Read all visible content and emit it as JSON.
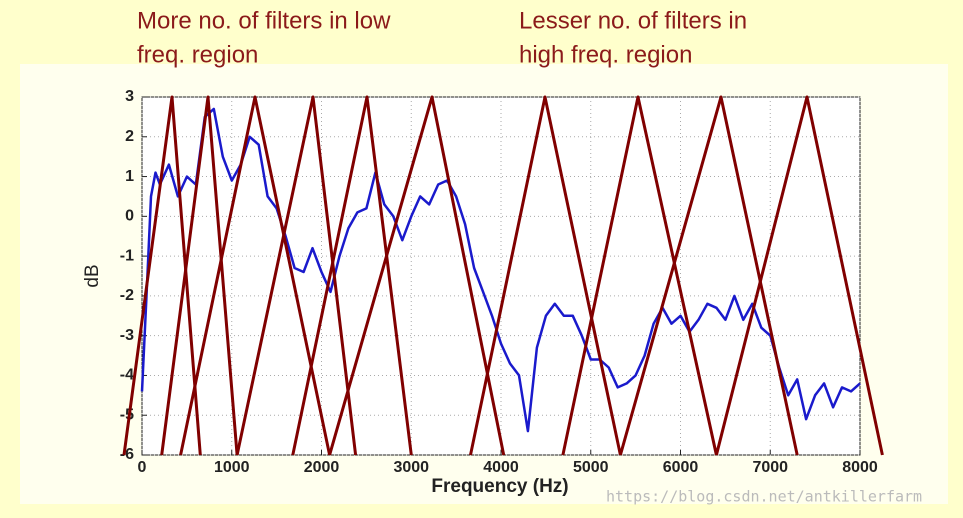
{
  "chart_data": {
    "type": "line",
    "annotations": [
      [
        "More no. of filters in low",
        "freq. region"
      ],
      [
        "Lesser no. of  filters in",
        "high  freq. region"
      ]
    ],
    "xlabel": "Frequency (Hz)",
    "ylabel": "dB",
    "watermark": "https://blog.csdn.net/antkillerfarm",
    "xlim": [
      0,
      8000
    ],
    "ylim": [
      -6,
      3
    ],
    "xticks": [
      0,
      1000,
      2000,
      3000,
      4000,
      5000,
      6000,
      7000,
      8000
    ],
    "yticks": [
      -6,
      -5,
      -4,
      -3,
      -2,
      -1,
      0,
      1,
      2,
      3
    ],
    "grid": true,
    "series": [
      {
        "color": "#1a1acc",
        "x": [
          0,
          50,
          100,
          150,
          200,
          300,
          400,
          500,
          600,
          700,
          800,
          900,
          1000,
          1100,
          1200,
          1300,
          1400,
          1500,
          1600,
          1700,
          1800,
          1900,
          2000,
          2100,
          2200,
          2300,
          2400,
          2500,
          2600,
          2700,
          2800,
          2900,
          3000,
          3100,
          3200,
          3300,
          3400,
          3500,
          3600,
          3700,
          3800,
          3900,
          4000,
          4100,
          4200,
          4300,
          4400,
          4500,
          4600,
          4700,
          4800,
          4900,
          5000,
          5100,
          5200,
          5300,
          5400,
          5500,
          5600,
          5700,
          5800,
          5900,
          6000,
          6100,
          6200,
          6300,
          6400,
          6500,
          6600,
          6700,
          6800,
          6900,
          7000,
          7100,
          7200,
          7300,
          7400,
          7500,
          7600,
          7700,
          7800,
          7900,
          8000
        ],
        "values": [
          -4.4,
          -2,
          0.5,
          1.1,
          0.8,
          1.3,
          0.5,
          1.0,
          0.8,
          2.5,
          2.7,
          1.5,
          0.9,
          1.3,
          2.0,
          1.8,
          0.5,
          0.2,
          -0.5,
          -1.3,
          -1.4,
          -0.8,
          -1.4,
          -1.9,
          -1.0,
          -0.3,
          0.1,
          0.2,
          1.1,
          0.3,
          0.0,
          -0.6,
          0.0,
          0.5,
          0.3,
          0.8,
          0.9,
          0.5,
          -0.2,
          -1.3,
          -1.9,
          -2.5,
          -3.2,
          -3.7,
          -4.0,
          -5.4,
          -3.3,
          -2.5,
          -2.2,
          -2.5,
          -2.5,
          -3.0,
          -3.6,
          -3.6,
          -3.8,
          -4.3,
          -4.2,
          -4.0,
          -3.5,
          -2.7,
          -2.3,
          -2.7,
          -2.5,
          -2.9,
          -2.6,
          -2.2,
          -2.3,
          -2.6,
          -2.0,
          -2.6,
          -2.2,
          -2.8,
          -3.0,
          -3.8,
          -4.5,
          -4.1,
          -5.1,
          -4.5,
          -4.2,
          -4.8,
          -4.3,
          -4.4,
          -4.2
        ]
      },
      {
        "color": "#800000",
        "x": [
          -200,
          334,
          650
        ],
        "values": [
          -6,
          3,
          -6
        ]
      },
      {
        "color": "#800000",
        "x": [
          220,
          735,
          1060
        ],
        "values": [
          -6,
          3,
          -6
        ]
      },
      {
        "color": "#800000",
        "x": [
          430,
          1259,
          2090
        ],
        "values": [
          -6,
          3,
          -6
        ]
      },
      {
        "color": "#800000",
        "x": [
          1060,
          1905,
          2380
        ],
        "values": [
          -6,
          3,
          -6
        ]
      },
      {
        "color": "#800000",
        "x": [
          1680,
          2507,
          3000
        ],
        "values": [
          -6,
          3,
          -6
        ]
      },
      {
        "color": "#800000",
        "x": [
          2090,
          3231,
          4030
        ],
        "values": [
          -6,
          3,
          -6
        ]
      },
      {
        "color": "#800000",
        "x": [
          3660,
          4490,
          5330
        ],
        "values": [
          -6,
          3,
          -6
        ]
      },
      {
        "color": "#800000",
        "x": [
          4690,
          5526,
          6400
        ],
        "values": [
          -6,
          3,
          -6
        ]
      },
      {
        "color": "#800000",
        "x": [
          5330,
          6451,
          7300
        ],
        "values": [
          -6,
          3,
          -6
        ]
      },
      {
        "color": "#800000",
        "x": [
          6400,
          7409,
          8250
        ],
        "values": [
          -6,
          3,
          -6
        ]
      }
    ]
  }
}
